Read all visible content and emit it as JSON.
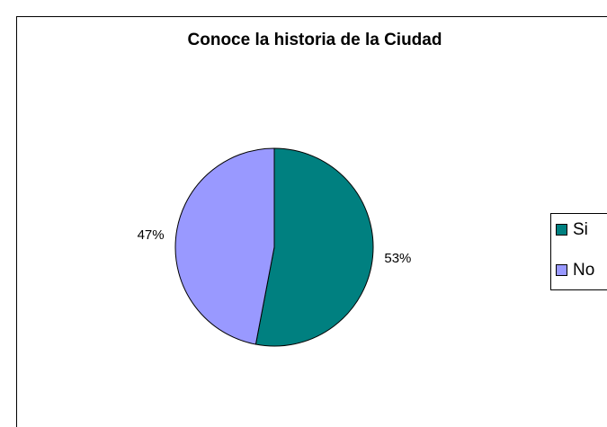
{
  "chart_data": {
    "type": "pie",
    "title": "Conoce la historia de la Ciudad",
    "categories": [
      "Si",
      "No"
    ],
    "values": [
      53,
      47
    ],
    "value_labels": [
      "53%",
      "47%"
    ],
    "colors": [
      "#008080",
      "#9999ff"
    ],
    "legend": "right"
  }
}
